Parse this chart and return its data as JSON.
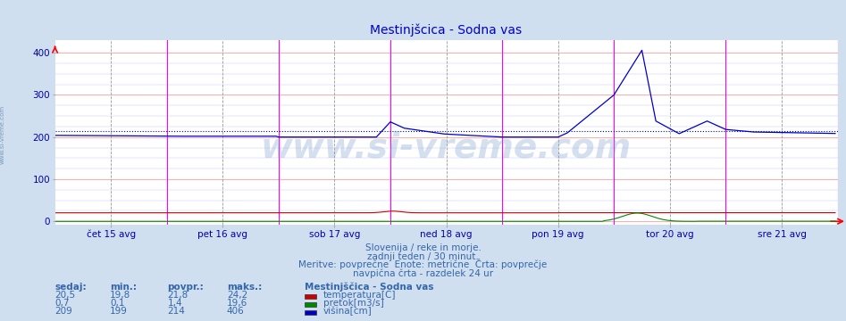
{
  "title": "Mestinjšcica - Sodna vas",
  "bg_color": "#d0dff0",
  "plot_bg_color": "#ffffff",
  "x_labels": [
    "čet 15 avg",
    "pet 16 avg",
    "sob 17 avg",
    "ned 18 avg",
    "pon 19 avg",
    "tor 20 avg",
    "sre 21 avg"
  ],
  "y_ticks": [
    0,
    100,
    200,
    300,
    400
  ],
  "ylim": [
    -8,
    430
  ],
  "xlim": [
    0,
    336
  ],
  "dashed_line_y": 214,
  "avg_line_color": "#0000bb",
  "temp_color": "#cc0000",
  "flow_color": "#008800",
  "height_color": "#0000cc",
  "title_color": "#0000cc",
  "axis_color": "#0000aa",
  "text_color": "#3366aa",
  "watermark": "www.si-vreme.com",
  "subtitle1": "Slovenija / reke in morje.",
  "subtitle2": "zadnji teden / 30 minut.",
  "subtitle3": "Meritve: povprečne  Enote: metrične  Črta: povprečje",
  "subtitle4": "navpična črta - razdelek 24 ur",
  "legend_title": "Mestinjščica - Sodna vas",
  "legend_items": [
    "temperatura[C]",
    "pretok[m3/s]",
    "višina[cm]"
  ],
  "legend_colors": [
    "#cc0000",
    "#008800",
    "#0000cc"
  ],
  "table_headers": [
    "sedaj:",
    "min.:",
    "povpr.:",
    "maks.:"
  ],
  "table_values": [
    [
      "20,5",
      "19,8",
      "21,8",
      "24,2"
    ],
    [
      "0,7",
      "0,1",
      "1,4",
      "19,6"
    ],
    [
      "209",
      "199",
      "214",
      "406"
    ]
  ],
  "n_points": 336,
  "pts_per_day": 48,
  "magenta_lines_x": [
    48,
    96,
    144,
    192,
    240,
    288,
    336
  ],
  "dashed_vertical_x": [
    24,
    72,
    120,
    168,
    216,
    264,
    312
  ],
  "x_tick_positions": [
    24,
    72,
    120,
    168,
    216,
    264,
    312
  ]
}
